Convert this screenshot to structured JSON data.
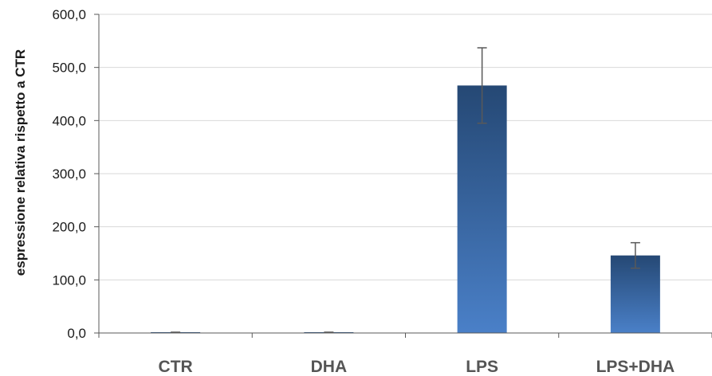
{
  "chart_data": {
    "type": "bar",
    "categories": [
      "CTR",
      "DHA",
      "LPS",
      "LPS+DHA"
    ],
    "values": [
      1.0,
      1.0,
      466.0,
      146.0
    ],
    "error": [
      0.5,
      0.5,
      71.0,
      24.0
    ],
    "title": "",
    "xlabel": "",
    "ylabel": "espressione relativa rispetto a CTR",
    "ylim": [
      0,
      600
    ],
    "yticks": [
      0,
      100,
      200,
      300,
      400,
      500,
      600
    ],
    "ytick_labels": [
      "0,0",
      "100,0",
      "200,0",
      "300,0",
      "400,0",
      "500,0",
      "600,0"
    ],
    "grid": true,
    "legend": "none",
    "colors": {
      "bar_top": "#254874",
      "bar_bottom": "#4a80c8",
      "gridline": "#d9d9d9",
      "axis": "#595959",
      "errorbar": "#595959"
    }
  }
}
